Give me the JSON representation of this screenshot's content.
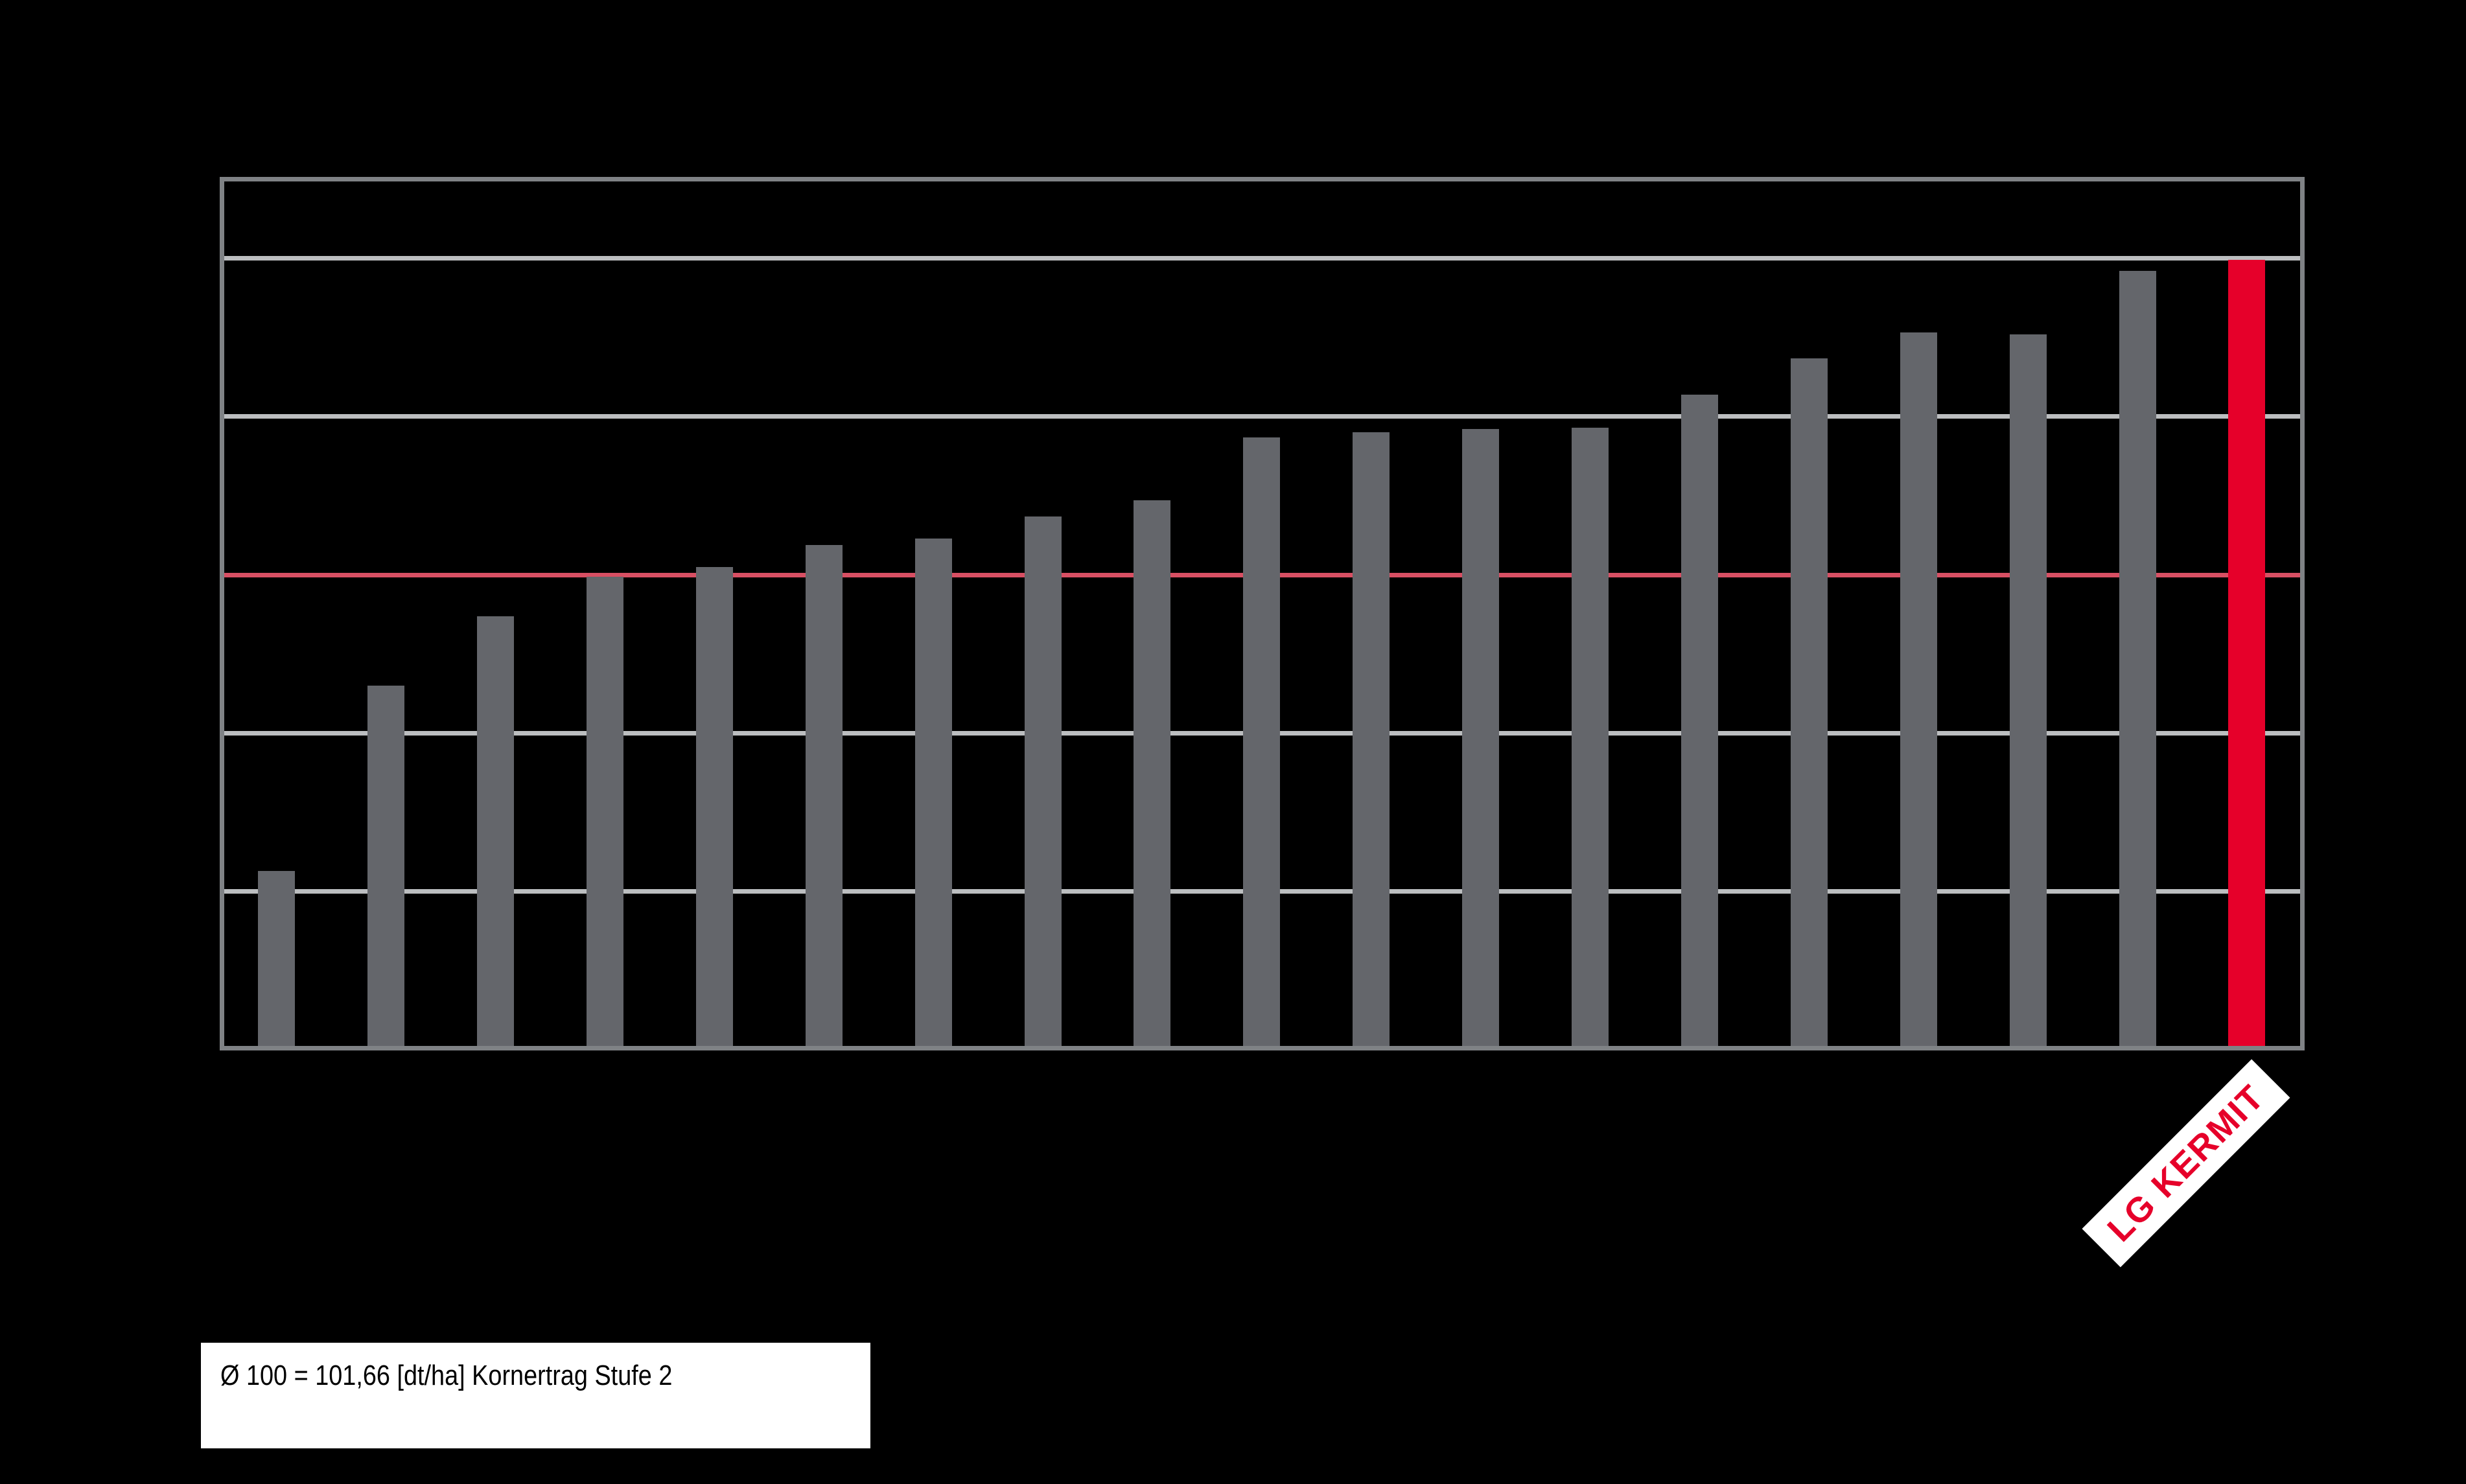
{
  "chart_data": {
    "type": "bar",
    "title": "",
    "categories": [
      "",
      "",
      "",
      "",
      "",
      "",
      "",
      "",
      "",
      "",
      "",
      "",
      "",
      "",
      "",
      "",
      "",
      "",
      "LG KERMIT"
    ],
    "values": [
      81.3,
      93.0,
      97.4,
      99.9,
      100.5,
      101.9,
      102.3,
      103.7,
      104.7,
      108.7,
      109.0,
      109.2,
      109.3,
      111.4,
      113.7,
      115.3,
      115.2,
      119.2,
      119.9
    ],
    "highlight_index": 18,
    "highlight_label": "LG KERMIT",
    "ylim": [
      70,
      125
    ],
    "gridline_values": [
      80,
      90,
      100,
      110,
      120
    ],
    "reference_line_value": 100,
    "grid_on": true,
    "legend_position": "none",
    "xlabel": "",
    "ylabel": "",
    "colors": {
      "background": "#000000",
      "bar": "#64666b",
      "highlight_bar": "#e6002a",
      "reference_line": "#d84f63",
      "gridline": "#bcbec0",
      "frame": "#7f8285",
      "label_text": "#e6002a",
      "label_bg": "#ffffff",
      "annotation_text": "#000000",
      "annotation_bg": "#ffffff"
    }
  },
  "annotation": {
    "text": "Ø 100 = 101,66 [dt/ha] Kornertrag Stufe 2"
  }
}
